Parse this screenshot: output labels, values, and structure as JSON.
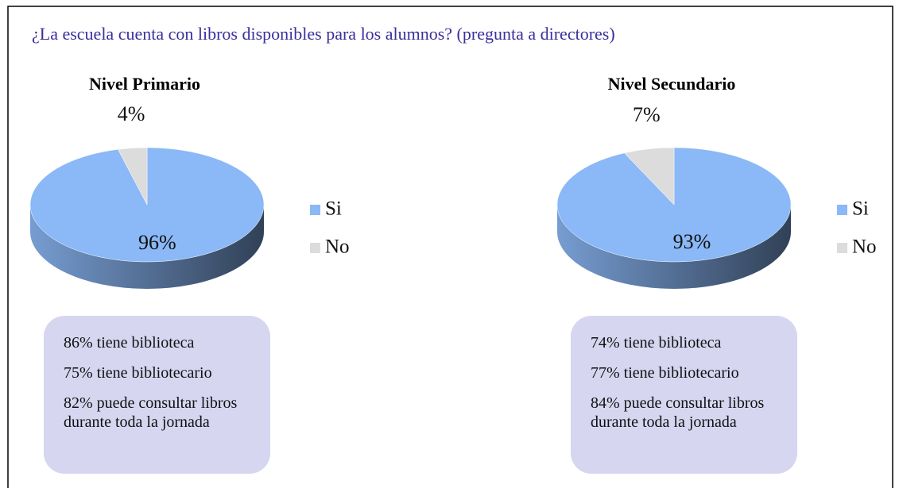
{
  "title": "¿La escuela cuenta con libros disponibles para los alumnos? (pregunta a directores)",
  "chart_data": [
    {
      "type": "pie",
      "title": "Nivel Primario",
      "categories": [
        "Si",
        "No"
      ],
      "values": [
        96,
        4
      ],
      "value_labels": [
        "96%",
        "4%"
      ],
      "colors": [
        "#8bb8f6",
        "#dcdcdc"
      ],
      "legend": "right"
    },
    {
      "type": "pie",
      "title": "Nivel Secundario",
      "categories": [
        "Si",
        "No"
      ],
      "values": [
        93,
        7
      ],
      "value_labels": [
        "93%",
        "7%"
      ],
      "colors": [
        "#8bb8f6",
        "#dcdcdc"
      ],
      "legend": "right"
    }
  ],
  "notes": [
    [
      "86% tiene biblioteca",
      "75% tiene bibliotecario",
      "82% puede consultar libros durante toda la jornada"
    ],
    [
      "74% tiene biblioteca",
      "77% tiene bibliotecario",
      "84% puede consultar libros durante toda la jornada"
    ]
  ]
}
